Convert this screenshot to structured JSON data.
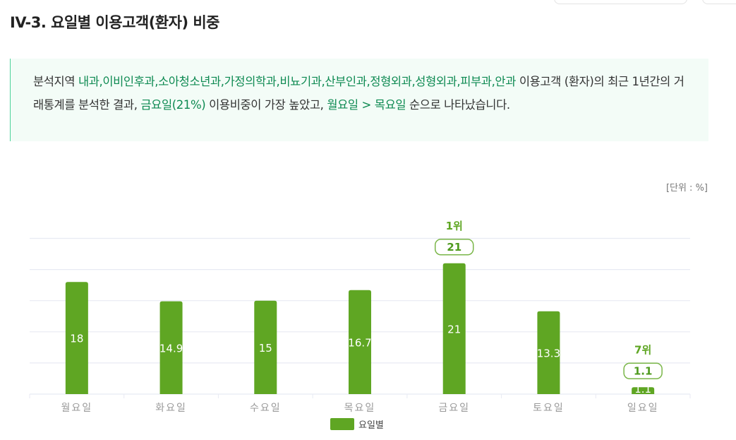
{
  "title": "IV-3. 요일별 이용고객(환자) 비중",
  "summary": {
    "prefix": "분석지역 ",
    "departments": "내과,이비인후과,소아청소년과,가정의학과,비뇨기과,산부인과,정형외과,성형외과,피부과,안과",
    "mid1": " 이용고객 (환자)의 최근 1년간의 거래통계를 분석한 결과, ",
    "top_day": "금요일",
    "top_pct": "(21%)",
    "mid2": " 이용비중이 가장 높았고, ",
    "order": "월요일 > 목요일",
    "suffix": " 순으로 나타났습니다."
  },
  "unit_label": "[단위 : %]",
  "chart_data": {
    "type": "bar",
    "categories": [
      "월요일",
      "화요일",
      "수요일",
      "목요일",
      "금요일",
      "토요일",
      "일요일"
    ],
    "series": [
      {
        "name": "요일별",
        "values": [
          18,
          14.9,
          15,
          16.7,
          21,
          13.3,
          1.1
        ]
      }
    ],
    "ylim": [
      0,
      25
    ],
    "grid": true,
    "legend": "bottom",
    "annotations": [
      {
        "category": "금요일",
        "rank": "1위",
        "value": "21"
      },
      {
        "category": "일요일",
        "rank": "7위",
        "value": "1.1"
      }
    ],
    "colors": {
      "bar": "#5fa623",
      "grid": "#e8eaf3",
      "axis_text": "#999999"
    }
  }
}
